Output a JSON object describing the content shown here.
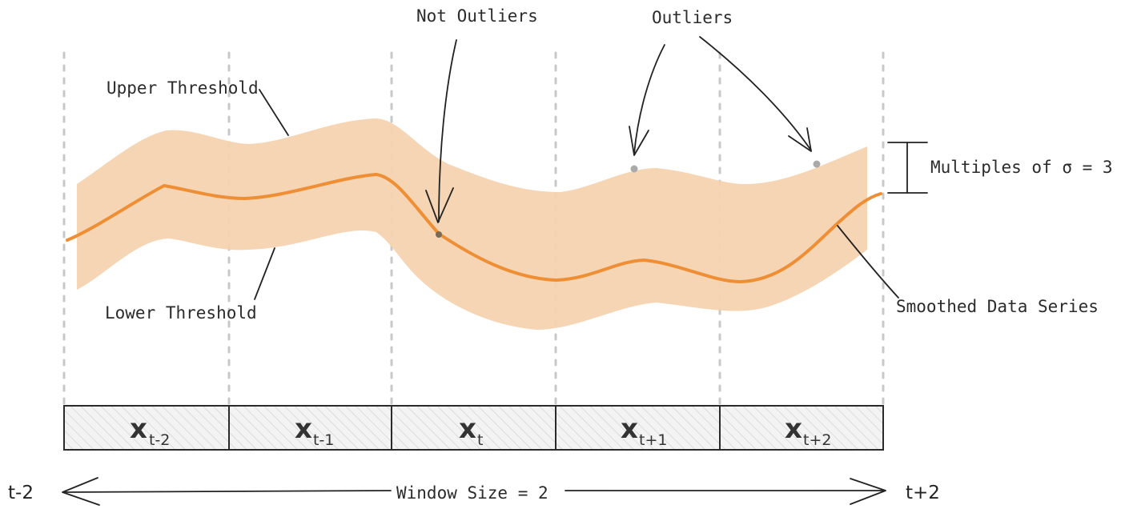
{
  "labels": {
    "not_outliers": "Not Outliers",
    "outliers": "Outliers",
    "upper_threshold": "Upper Threshold",
    "lower_threshold": "Lower Threshold",
    "multiples_sigma": "Multiples of σ = 3",
    "smoothed_series": "Smoothed Data Series",
    "window_size": "Window Size = 2",
    "left_edge": "t-2",
    "right_edge": "t+2"
  },
  "window_cells": [
    {
      "var": "x",
      "sub": "t-2"
    },
    {
      "var": "x",
      "sub": "t-1"
    },
    {
      "var": "x",
      "sub": "t"
    },
    {
      "var": "x",
      "sub": "t+1"
    },
    {
      "var": "x",
      "sub": "t+2"
    }
  ],
  "colors": {
    "band": "#f6d3b0",
    "series": "#ee8e35",
    "ink": "#222222",
    "guide": "#c8c8c8",
    "cell_hatch": "#d9d9d9"
  }
}
